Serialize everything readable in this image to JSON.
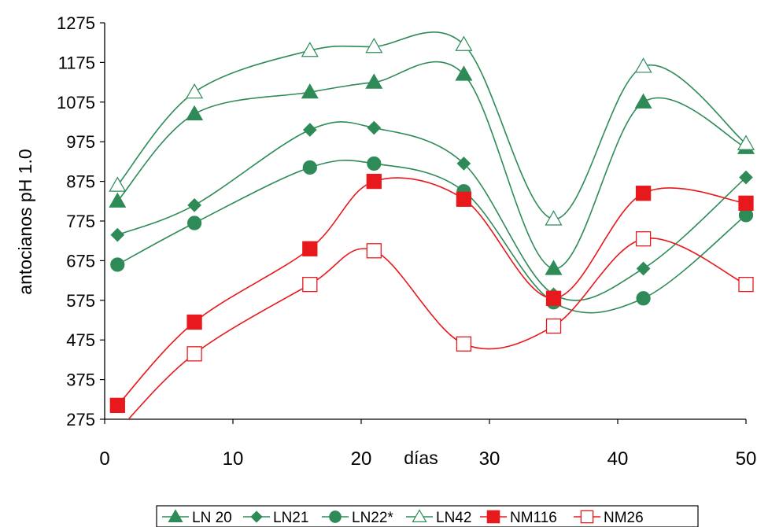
{
  "chart_data": {
    "type": "line",
    "xlabel": "días",
    "ylabel": "antocianos pH 1.0",
    "xlim": [
      0,
      50
    ],
    "ylim": [
      275,
      1275
    ],
    "x_ticks": [
      0,
      10,
      20,
      30,
      40,
      50
    ],
    "y_ticks": [
      275,
      375,
      475,
      575,
      675,
      775,
      875,
      975,
      1075,
      1175,
      1275
    ],
    "grid": false,
    "legend_position": "bottom",
    "smoothed": true,
    "series": [
      {
        "name": "LN 20",
        "color": "#2e8b57",
        "marker": "triangle-filled",
        "x": [
          1,
          7,
          16,
          21,
          28,
          35,
          42,
          50
        ],
        "y": [
          825,
          1045,
          1100,
          1125,
          1145,
          655,
          1075,
          960
        ]
      },
      {
        "name": "LN21",
        "color": "#2e8b57",
        "marker": "diamond-filled",
        "x": [
          1,
          7,
          16,
          21,
          28,
          35,
          42,
          50
        ],
        "y": [
          740,
          815,
          1005,
          1010,
          920,
          590,
          655,
          885
        ]
      },
      {
        "name": "LN22*",
        "color": "#2e8b57",
        "marker": "circle-filled",
        "x": [
          1,
          7,
          16,
          21,
          28,
          35,
          42,
          50
        ],
        "y": [
          665,
          770,
          910,
          920,
          850,
          570,
          580,
          790
        ]
      },
      {
        "name": "LN42",
        "color": "#2e8b57",
        "marker": "triangle-open",
        "x": [
          1,
          7,
          16,
          21,
          28,
          35,
          42,
          50
        ],
        "y": [
          865,
          1100,
          1205,
          1215,
          1220,
          780,
          1165,
          970
        ]
      },
      {
        "name": "NM116",
        "color": "#e8191c",
        "marker": "square-filled",
        "x": [
          1,
          7,
          16,
          21,
          28,
          35,
          42,
          50
        ],
        "y": [
          310,
          520,
          705,
          875,
          830,
          580,
          845,
          820
        ]
      },
      {
        "name": "NM26",
        "color": "#e8191c",
        "marker": "square-open",
        "x": [
          1,
          7,
          16,
          21,
          28,
          35,
          42,
          50
        ],
        "y": [
          245,
          440,
          615,
          700,
          465,
          510,
          730,
          615
        ]
      }
    ]
  }
}
